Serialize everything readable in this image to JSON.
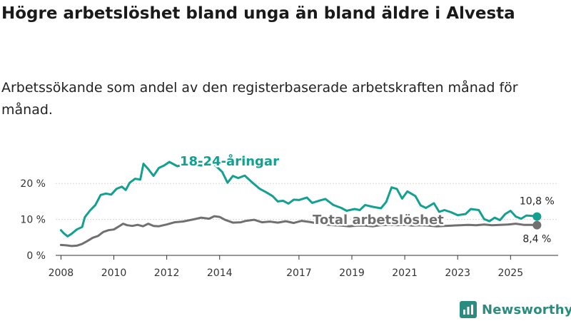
{
  "title": "Högre arbetslöshet bland unga än bland äldre i Alvesta",
  "subtitle": "Arbetssökande som andel av den registerbaserade arbetskraften månad för månad.",
  "brand": {
    "name": "Newsworthy",
    "icon": "bar-chart-logo-icon",
    "color": "#2a8c7e"
  },
  "chart_data": {
    "type": "line",
    "title": "Högre arbetslöshet bland unga än bland äldre i Alvesta",
    "xlabel": "",
    "ylabel": "",
    "xlim": [
      2007.8,
      2026.8
    ],
    "ylim": [
      0,
      25
    ],
    "yticks": [
      {
        "value": 0,
        "label": "0 %"
      },
      {
        "value": 10,
        "label": "10 %"
      },
      {
        "value": 20,
        "label": "20 %"
      }
    ],
    "xticks": [
      {
        "value": 2008,
        "label": "2008"
      },
      {
        "value": 2010,
        "label": "2010"
      },
      {
        "value": 2012,
        "label": "2012"
      },
      {
        "value": 2014,
        "label": "2014"
      },
      {
        "value": 2017,
        "label": "2017"
      },
      {
        "value": 2019,
        "label": "2019"
      },
      {
        "value": 2021,
        "label": "2021"
      },
      {
        "value": 2023,
        "label": "2023"
      },
      {
        "value": 2025,
        "label": "2025"
      }
    ],
    "grid": true,
    "series": [
      {
        "name": "18-24-åringar",
        "label": "18-24-åringar",
        "color": "#13a091",
        "end_label": "10,8 %",
        "end_value": 10.8,
        "points": [
          [
            2008.0,
            7.0
          ],
          [
            2008.1,
            6.2
          ],
          [
            2008.25,
            5.3
          ],
          [
            2008.4,
            6.0
          ],
          [
            2008.6,
            7.2
          ],
          [
            2008.8,
            7.9
          ],
          [
            2008.9,
            10.6
          ],
          [
            2009.1,
            12.5
          ],
          [
            2009.3,
            14.0
          ],
          [
            2009.5,
            16.8
          ],
          [
            2009.7,
            17.2
          ],
          [
            2009.9,
            16.9
          ],
          [
            2010.1,
            18.5
          ],
          [
            2010.3,
            19.1
          ],
          [
            2010.45,
            18.2
          ],
          [
            2010.6,
            20.2
          ],
          [
            2010.8,
            21.3
          ],
          [
            2011.0,
            21.1
          ],
          [
            2011.12,
            25.5
          ],
          [
            2011.3,
            24.0
          ],
          [
            2011.5,
            22.1
          ],
          [
            2011.7,
            24.3
          ],
          [
            2011.9,
            25.0
          ],
          [
            2012.1,
            26.0
          ],
          [
            2012.4,
            24.8
          ],
          [
            2012.8,
            25.5
          ],
          [
            2013.3,
            25.0
          ],
          [
            2013.8,
            25.3
          ],
          [
            2014.1,
            23.2
          ],
          [
            2014.3,
            20.2
          ],
          [
            2014.5,
            22.1
          ],
          [
            2014.7,
            21.5
          ],
          [
            2014.95,
            22.2
          ],
          [
            2015.2,
            20.5
          ],
          [
            2015.5,
            18.6
          ],
          [
            2015.75,
            17.6
          ],
          [
            2016.0,
            16.5
          ],
          [
            2016.2,
            15.0
          ],
          [
            2016.4,
            15.2
          ],
          [
            2016.6,
            14.4
          ],
          [
            2016.8,
            15.5
          ],
          [
            2017.0,
            15.4
          ],
          [
            2017.3,
            16.1
          ],
          [
            2017.5,
            14.6
          ],
          [
            2017.8,
            15.3
          ],
          [
            2018.0,
            15.7
          ],
          [
            2018.3,
            14.0
          ],
          [
            2018.6,
            13.2
          ],
          [
            2018.8,
            12.4
          ],
          [
            2019.1,
            12.9
          ],
          [
            2019.3,
            12.6
          ],
          [
            2019.5,
            14.0
          ],
          [
            2019.8,
            13.5
          ],
          [
            2020.1,
            13.1
          ],
          [
            2020.3,
            14.9
          ],
          [
            2020.5,
            18.9
          ],
          [
            2020.7,
            18.5
          ],
          [
            2020.9,
            15.8
          ],
          [
            2021.1,
            17.8
          ],
          [
            2021.4,
            16.5
          ],
          [
            2021.6,
            13.9
          ],
          [
            2021.8,
            13.2
          ],
          [
            2022.1,
            14.5
          ],
          [
            2022.3,
            12.1
          ],
          [
            2022.5,
            12.6
          ],
          [
            2022.75,
            12.0
          ],
          [
            2023.0,
            11.2
          ],
          [
            2023.3,
            11.5
          ],
          [
            2023.5,
            12.9
          ],
          [
            2023.8,
            12.6
          ],
          [
            2024.0,
            10.1
          ],
          [
            2024.2,
            9.5
          ],
          [
            2024.4,
            10.5
          ],
          [
            2024.6,
            9.8
          ],
          [
            2024.8,
            11.5
          ],
          [
            2025.0,
            12.4
          ],
          [
            2025.2,
            10.8
          ],
          [
            2025.4,
            10.2
          ],
          [
            2025.6,
            11.1
          ],
          [
            2025.8,
            11.0
          ],
          [
            2026.0,
            10.8
          ]
        ]
      },
      {
        "name": "Total arbetslöshet",
        "label": "Total arbetslöshet",
        "color": "#707070",
        "end_label": "8,4 %",
        "end_value": 8.4,
        "points": [
          [
            2008.0,
            2.9
          ],
          [
            2008.2,
            2.8
          ],
          [
            2008.4,
            2.6
          ],
          [
            2008.6,
            2.7
          ],
          [
            2008.8,
            3.2
          ],
          [
            2009.0,
            4.0
          ],
          [
            2009.2,
            4.9
          ],
          [
            2009.4,
            5.4
          ],
          [
            2009.6,
            6.5
          ],
          [
            2009.8,
            7.0
          ],
          [
            2010.0,
            7.2
          ],
          [
            2010.2,
            8.1
          ],
          [
            2010.35,
            8.8
          ],
          [
            2010.5,
            8.4
          ],
          [
            2010.7,
            8.2
          ],
          [
            2010.9,
            8.5
          ],
          [
            2011.1,
            8.1
          ],
          [
            2011.3,
            8.8
          ],
          [
            2011.5,
            8.2
          ],
          [
            2011.7,
            8.1
          ],
          [
            2012.0,
            8.6
          ],
          [
            2012.3,
            9.2
          ],
          [
            2012.6,
            9.4
          ],
          [
            2013.0,
            10.0
          ],
          [
            2013.3,
            10.5
          ],
          [
            2013.6,
            10.2
          ],
          [
            2013.8,
            10.9
          ],
          [
            2014.0,
            10.7
          ],
          [
            2014.2,
            9.9
          ],
          [
            2014.5,
            9.1
          ],
          [
            2014.8,
            9.2
          ],
          [
            2015.0,
            9.6
          ],
          [
            2015.3,
            9.9
          ],
          [
            2015.6,
            9.2
          ],
          [
            2015.9,
            9.4
          ],
          [
            2016.2,
            9.1
          ],
          [
            2016.5,
            9.5
          ],
          [
            2016.8,
            9.0
          ],
          [
            2017.1,
            9.6
          ],
          [
            2017.4,
            9.3
          ],
          [
            2017.7,
            8.9
          ],
          [
            2018.0,
            8.6
          ],
          [
            2018.3,
            8.4
          ],
          [
            2018.6,
            8.3
          ],
          [
            2018.9,
            8.1
          ],
          [
            2019.2,
            8.3
          ],
          [
            2019.5,
            8.3
          ],
          [
            2019.8,
            8.1
          ],
          [
            2020.1,
            8.4
          ],
          [
            2020.4,
            8.5
          ],
          [
            2020.7,
            8.4
          ],
          [
            2021.0,
            8.5
          ],
          [
            2021.3,
            8.3
          ],
          [
            2021.6,
            8.4
          ],
          [
            2021.9,
            8.3
          ],
          [
            2022.2,
            8.1
          ],
          [
            2022.5,
            8.2
          ],
          [
            2022.8,
            8.3
          ],
          [
            2023.1,
            8.4
          ],
          [
            2023.4,
            8.5
          ],
          [
            2023.7,
            8.4
          ],
          [
            2024.0,
            8.6
          ],
          [
            2024.3,
            8.4
          ],
          [
            2024.6,
            8.5
          ],
          [
            2024.9,
            8.6
          ],
          [
            2025.2,
            8.8
          ],
          [
            2025.5,
            8.5
          ],
          [
            2025.8,
            8.5
          ],
          [
            2026.0,
            8.4
          ]
        ]
      }
    ]
  }
}
